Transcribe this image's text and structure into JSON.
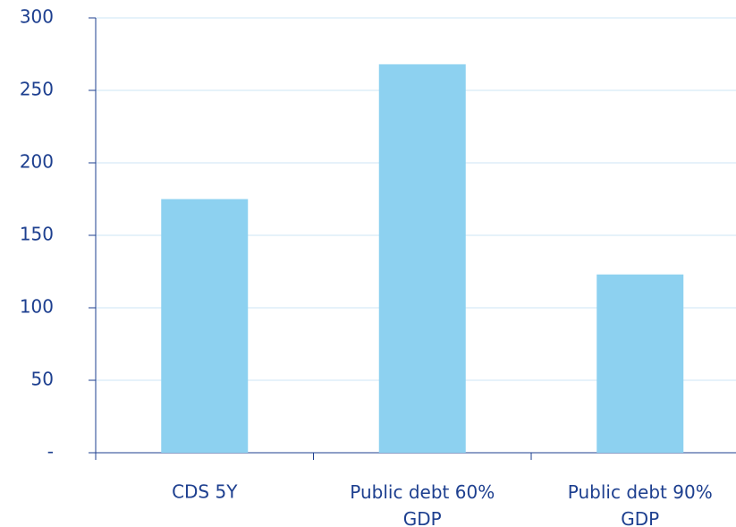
{
  "chart_data": {
    "type": "bar",
    "categories": [
      "CDS 5Y",
      "Public debt 60% GDP",
      "Public debt 90% GDP"
    ],
    "values": [
      175,
      268,
      123
    ],
    "color": "#8dd1f0",
    "ylim": [
      0,
      300
    ],
    "yticks": [
      {
        "value": 0,
        "label": "-"
      },
      50,
      100,
      150,
      200,
      250,
      300
    ],
    "grid": true
  }
}
